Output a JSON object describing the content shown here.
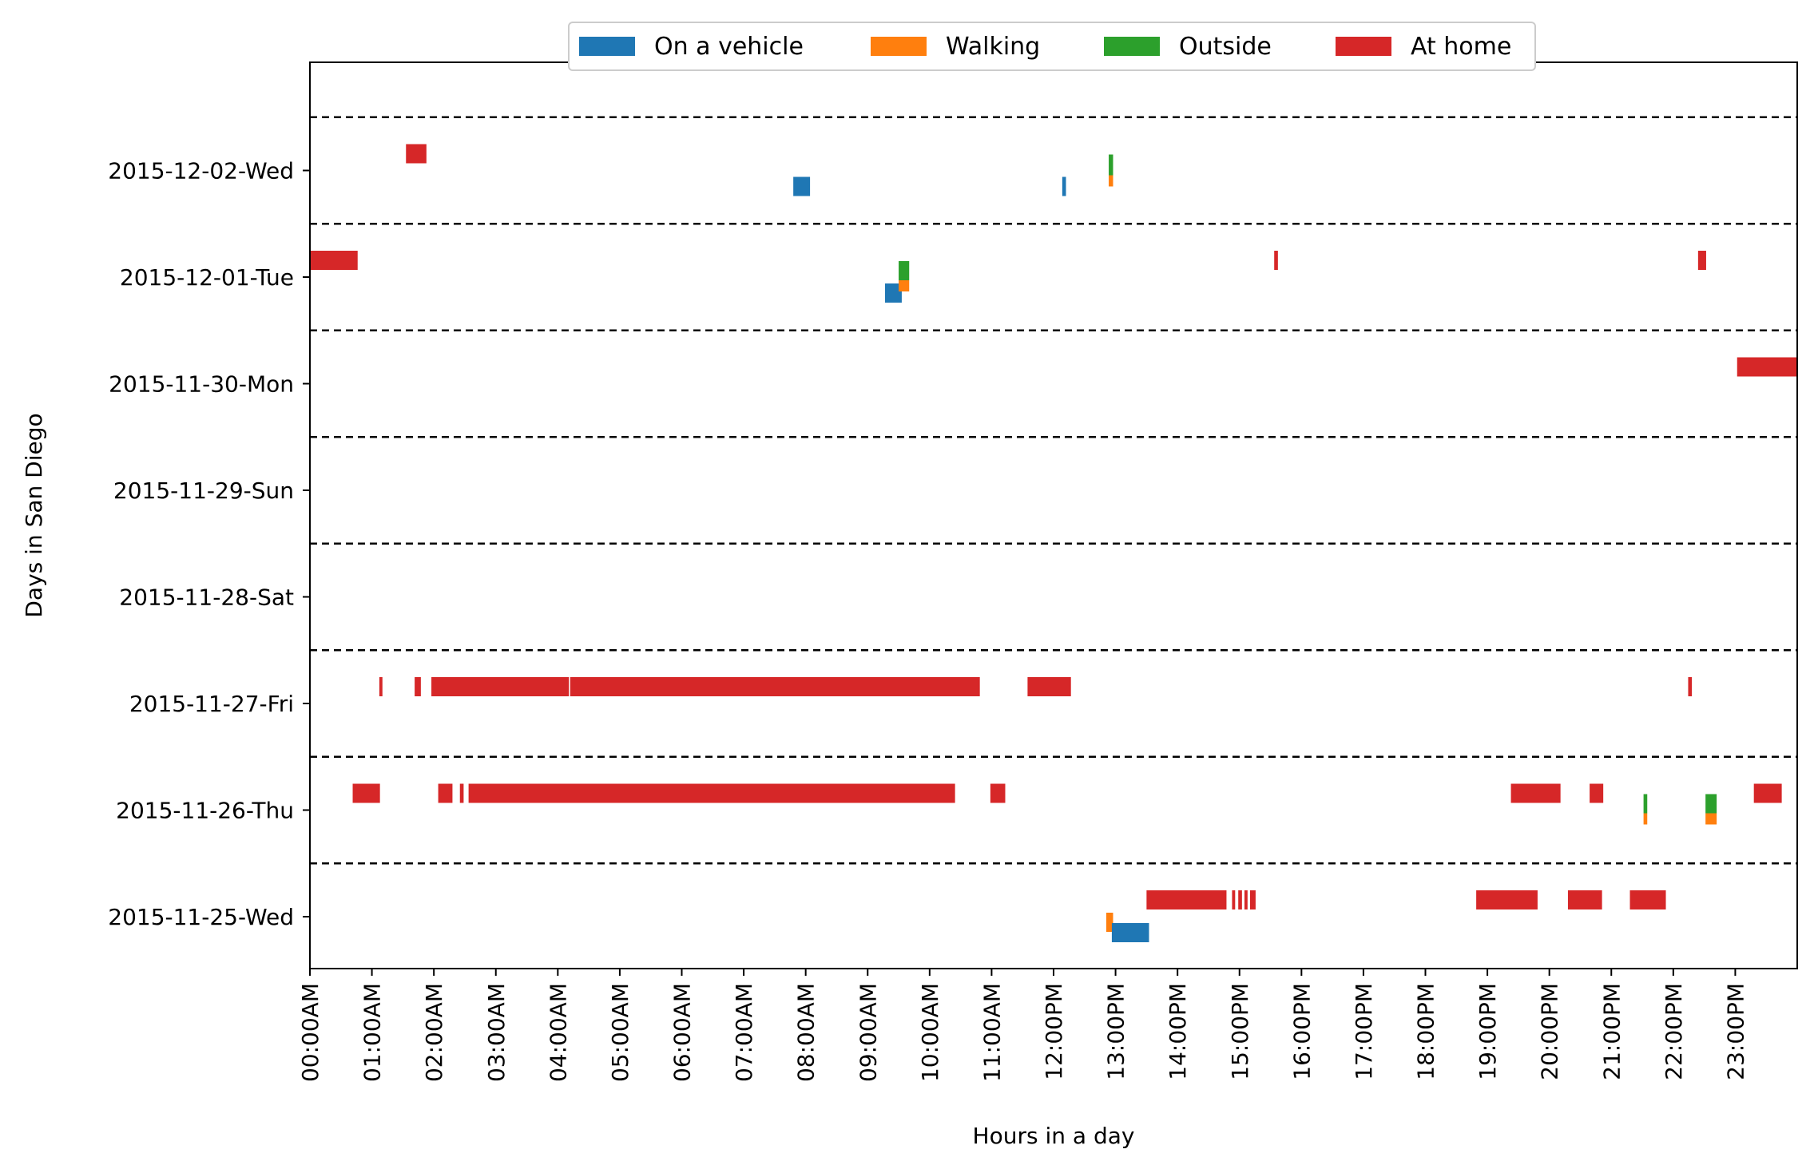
{
  "chart_data": {
    "type": "timeline",
    "xlabel": "Hours in a day",
    "ylabel": "Days in San Diego",
    "xlim": [
      0,
      24
    ],
    "x_tick_labels": [
      "00:00AM",
      "01:00AM",
      "02:00AM",
      "03:00AM",
      "04:00AM",
      "05:00AM",
      "06:00AM",
      "07:00AM",
      "08:00AM",
      "09:00AM",
      "10:00AM",
      "11:00AM",
      "12:00PM",
      "13:00PM",
      "14:00PM",
      "15:00PM",
      "16:00PM",
      "17:00PM",
      "18:00PM",
      "19:00PM",
      "20:00PM",
      "21:00PM",
      "22:00PM",
      "23:00PM"
    ],
    "days": [
      "2015-11-25-Wed",
      "2015-11-26-Thu",
      "2015-11-27-Fri",
      "2015-11-28-Sat",
      "2015-11-29-Sun",
      "2015-11-30-Mon",
      "2015-12-01-Tue",
      "2015-12-02-Wed"
    ],
    "legend": [
      {
        "key": "vehicle",
        "label": "On a vehicle",
        "color": "#1f77b4"
      },
      {
        "key": "walking",
        "label": "Walking",
        "color": "#ff7f0e"
      },
      {
        "key": "outside",
        "label": "Outside",
        "color": "#2ca02c"
      },
      {
        "key": "home",
        "label": "At home",
        "color": "#d62728"
      }
    ],
    "legend_position": "top-center",
    "day_separators": "dashed",
    "segments": [
      {
        "day": "2015-12-02-Wed",
        "type": "home",
        "start": 1.55,
        "end": 1.88
      },
      {
        "day": "2015-12-02-Wed",
        "type": "vehicle",
        "start": 7.8,
        "end": 8.07
      },
      {
        "day": "2015-12-02-Wed",
        "type": "vehicle",
        "start": 12.14,
        "end": 12.2
      },
      {
        "day": "2015-12-02-Wed",
        "type": "outside",
        "start": 12.89,
        "end": 12.96
      },
      {
        "day": "2015-12-02-Wed",
        "type": "walking",
        "start": 12.89,
        "end": 12.96
      },
      {
        "day": "2015-12-01-Tue",
        "type": "home",
        "start": 0.0,
        "end": 0.77
      },
      {
        "day": "2015-12-01-Tue",
        "type": "vehicle",
        "start": 9.28,
        "end": 9.55
      },
      {
        "day": "2015-12-01-Tue",
        "type": "outside",
        "start": 9.5,
        "end": 9.67
      },
      {
        "day": "2015-12-01-Tue",
        "type": "walking",
        "start": 9.5,
        "end": 9.67
      },
      {
        "day": "2015-12-01-Tue",
        "type": "home",
        "start": 15.56,
        "end": 15.62
      },
      {
        "day": "2015-12-01-Tue",
        "type": "home",
        "start": 22.4,
        "end": 22.53
      },
      {
        "day": "2015-11-30-Mon",
        "type": "home",
        "start": 23.03,
        "end": 24.0
      },
      {
        "day": "2015-11-27-Fri",
        "type": "home",
        "start": 1.12,
        "end": 1.17
      },
      {
        "day": "2015-11-27-Fri",
        "type": "home",
        "start": 1.69,
        "end": 1.79
      },
      {
        "day": "2015-11-27-Fri",
        "type": "home",
        "start": 1.96,
        "end": 4.18
      },
      {
        "day": "2015-11-27-Fri",
        "type": "home",
        "start": 4.2,
        "end": 10.81
      },
      {
        "day": "2015-11-27-Fri",
        "type": "home",
        "start": 11.58,
        "end": 12.28
      },
      {
        "day": "2015-11-27-Fri",
        "type": "home",
        "start": 22.24,
        "end": 22.3
      },
      {
        "day": "2015-11-26-Thu",
        "type": "home",
        "start": 0.69,
        "end": 1.13
      },
      {
        "day": "2015-11-26-Thu",
        "type": "home",
        "start": 2.07,
        "end": 2.3
      },
      {
        "day": "2015-11-26-Thu",
        "type": "home",
        "start": 2.42,
        "end": 2.48
      },
      {
        "day": "2015-11-26-Thu",
        "type": "home",
        "start": 2.56,
        "end": 10.41
      },
      {
        "day": "2015-11-26-Thu",
        "type": "home",
        "start": 10.98,
        "end": 11.22
      },
      {
        "day": "2015-11-26-Thu",
        "type": "home",
        "start": 19.38,
        "end": 20.18
      },
      {
        "day": "2015-11-26-Thu",
        "type": "home",
        "start": 20.65,
        "end": 20.87
      },
      {
        "day": "2015-11-26-Thu",
        "type": "outside",
        "start": 21.52,
        "end": 21.58
      },
      {
        "day": "2015-11-26-Thu",
        "type": "walking",
        "start": 21.52,
        "end": 21.58
      },
      {
        "day": "2015-11-26-Thu",
        "type": "outside",
        "start": 22.52,
        "end": 22.7
      },
      {
        "day": "2015-11-26-Thu",
        "type": "walking",
        "start": 22.52,
        "end": 22.7
      },
      {
        "day": "2015-11-26-Thu",
        "type": "home",
        "start": 23.3,
        "end": 23.75
      },
      {
        "day": "2015-11-25-Wed",
        "type": "walking",
        "start": 12.85,
        "end": 12.96
      },
      {
        "day": "2015-11-25-Wed",
        "type": "vehicle",
        "start": 12.94,
        "end": 13.54
      },
      {
        "day": "2015-11-25-Wed",
        "type": "home",
        "start": 13.5,
        "end": 14.79
      },
      {
        "day": "2015-11-25-Wed",
        "type": "home",
        "start": 14.88,
        "end": 14.93
      },
      {
        "day": "2015-11-25-Wed",
        "type": "home",
        "start": 14.98,
        "end": 15.04
      },
      {
        "day": "2015-11-25-Wed",
        "type": "home",
        "start": 15.08,
        "end": 15.13
      },
      {
        "day": "2015-11-25-Wed",
        "type": "home",
        "start": 15.17,
        "end": 15.26
      },
      {
        "day": "2015-11-25-Wed",
        "type": "home",
        "start": 18.82,
        "end": 19.81
      },
      {
        "day": "2015-11-25-Wed",
        "type": "home",
        "start": 20.3,
        "end": 20.85
      },
      {
        "day": "2015-11-25-Wed",
        "type": "home",
        "start": 21.3,
        "end": 21.88
      }
    ]
  }
}
